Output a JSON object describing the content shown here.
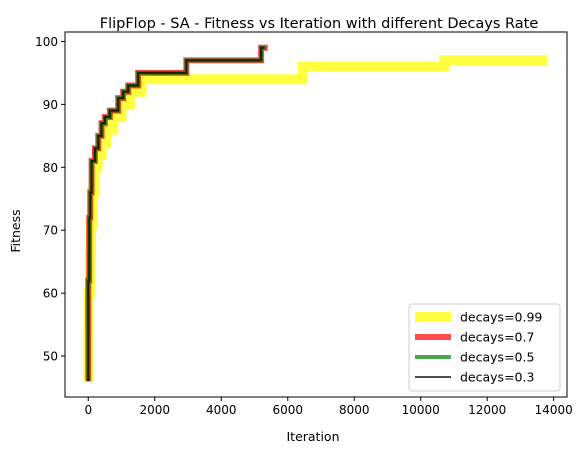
{
  "chart_data": {
    "type": "line",
    "title": "FlipFlop - SA - Fitness vs Iteration with different Decays Rate",
    "xlabel": "Iteration",
    "ylabel": "Fitness",
    "xlim": [
      -700,
      14400
    ],
    "ylim": [
      43.5,
      101.5
    ],
    "xticks": [
      0,
      2000,
      4000,
      6000,
      8000,
      10000,
      12000,
      14000
    ],
    "yticks": [
      50,
      60,
      70,
      80,
      90,
      100
    ],
    "grid": false,
    "legend_position": "lower right",
    "series": [
      {
        "name": "decays=0.99",
        "color": "#ffff00",
        "alpha": 0.75,
        "line_width": 10,
        "x": [
          0,
          0,
          20,
          20,
          50,
          50,
          80,
          80,
          120,
          120,
          180,
          180,
          280,
          280,
          400,
          400,
          550,
          550,
          750,
          750,
          1000,
          1000,
          1250,
          1250,
          1600,
          1600,
          6450,
          6450,
          10700,
          10700,
          13800
        ],
        "y": [
          46,
          54,
          54,
          60,
          60,
          66,
          66,
          71,
          71,
          76,
          76,
          80,
          80,
          82,
          82,
          84,
          84,
          86,
          86,
          88,
          88,
          90,
          90,
          92,
          92,
          94,
          94,
          96,
          96,
          97,
          97
        ]
      },
      {
        "name": "decays=0.7",
        "color": "#ff0000",
        "alpha": 0.7,
        "line_width": 6,
        "x": [
          0,
          0,
          30,
          30,
          60,
          60,
          100,
          100,
          200,
          200,
          300,
          300,
          400,
          400,
          500,
          500,
          650,
          650,
          900,
          900,
          1050,
          1050,
          1200,
          1200,
          1500,
          1500,
          2950,
          2950,
          5200,
          5200,
          5400
        ],
        "y": [
          46,
          62,
          62,
          72,
          72,
          76,
          76,
          81,
          81,
          83,
          83,
          85,
          85,
          87,
          87,
          88,
          88,
          89,
          89,
          91,
          91,
          92,
          92,
          93,
          93,
          95,
          95,
          97,
          97,
          99,
          99
        ]
      },
      {
        "name": "decays=0.5",
        "color": "#008000",
        "alpha": 0.7,
        "line_width": 4,
        "x": [
          0,
          0,
          30,
          30,
          60,
          60,
          100,
          100,
          200,
          200,
          300,
          300,
          400,
          400,
          500,
          500,
          650,
          650,
          900,
          900,
          1050,
          1050,
          1200,
          1200,
          1500,
          1500,
          2950,
          2950,
          5200,
          5200,
          5350
        ],
        "y": [
          46,
          62,
          62,
          72,
          72,
          76,
          76,
          81,
          81,
          83,
          83,
          85,
          85,
          87,
          87,
          88,
          88,
          89,
          89,
          91,
          91,
          92,
          92,
          93,
          93,
          95,
          95,
          97,
          97,
          99,
          99
        ]
      },
      {
        "name": "decays=0.3",
        "color": "#000000",
        "alpha": 0.7,
        "line_width": 2,
        "x": [
          0,
          0,
          30,
          30,
          60,
          60,
          100,
          100,
          200,
          200,
          300,
          300,
          400,
          400,
          500,
          500,
          650,
          650,
          900,
          900,
          1050,
          1050,
          1200,
          1200,
          1500,
          1500,
          2950,
          2950,
          5200,
          5200,
          5300
        ],
        "y": [
          46,
          62,
          62,
          72,
          72,
          76,
          76,
          81,
          81,
          83,
          83,
          85,
          85,
          87,
          87,
          88,
          88,
          89,
          89,
          91,
          91,
          92,
          92,
          93,
          93,
          95,
          95,
          97,
          97,
          99,
          99
        ]
      }
    ]
  }
}
